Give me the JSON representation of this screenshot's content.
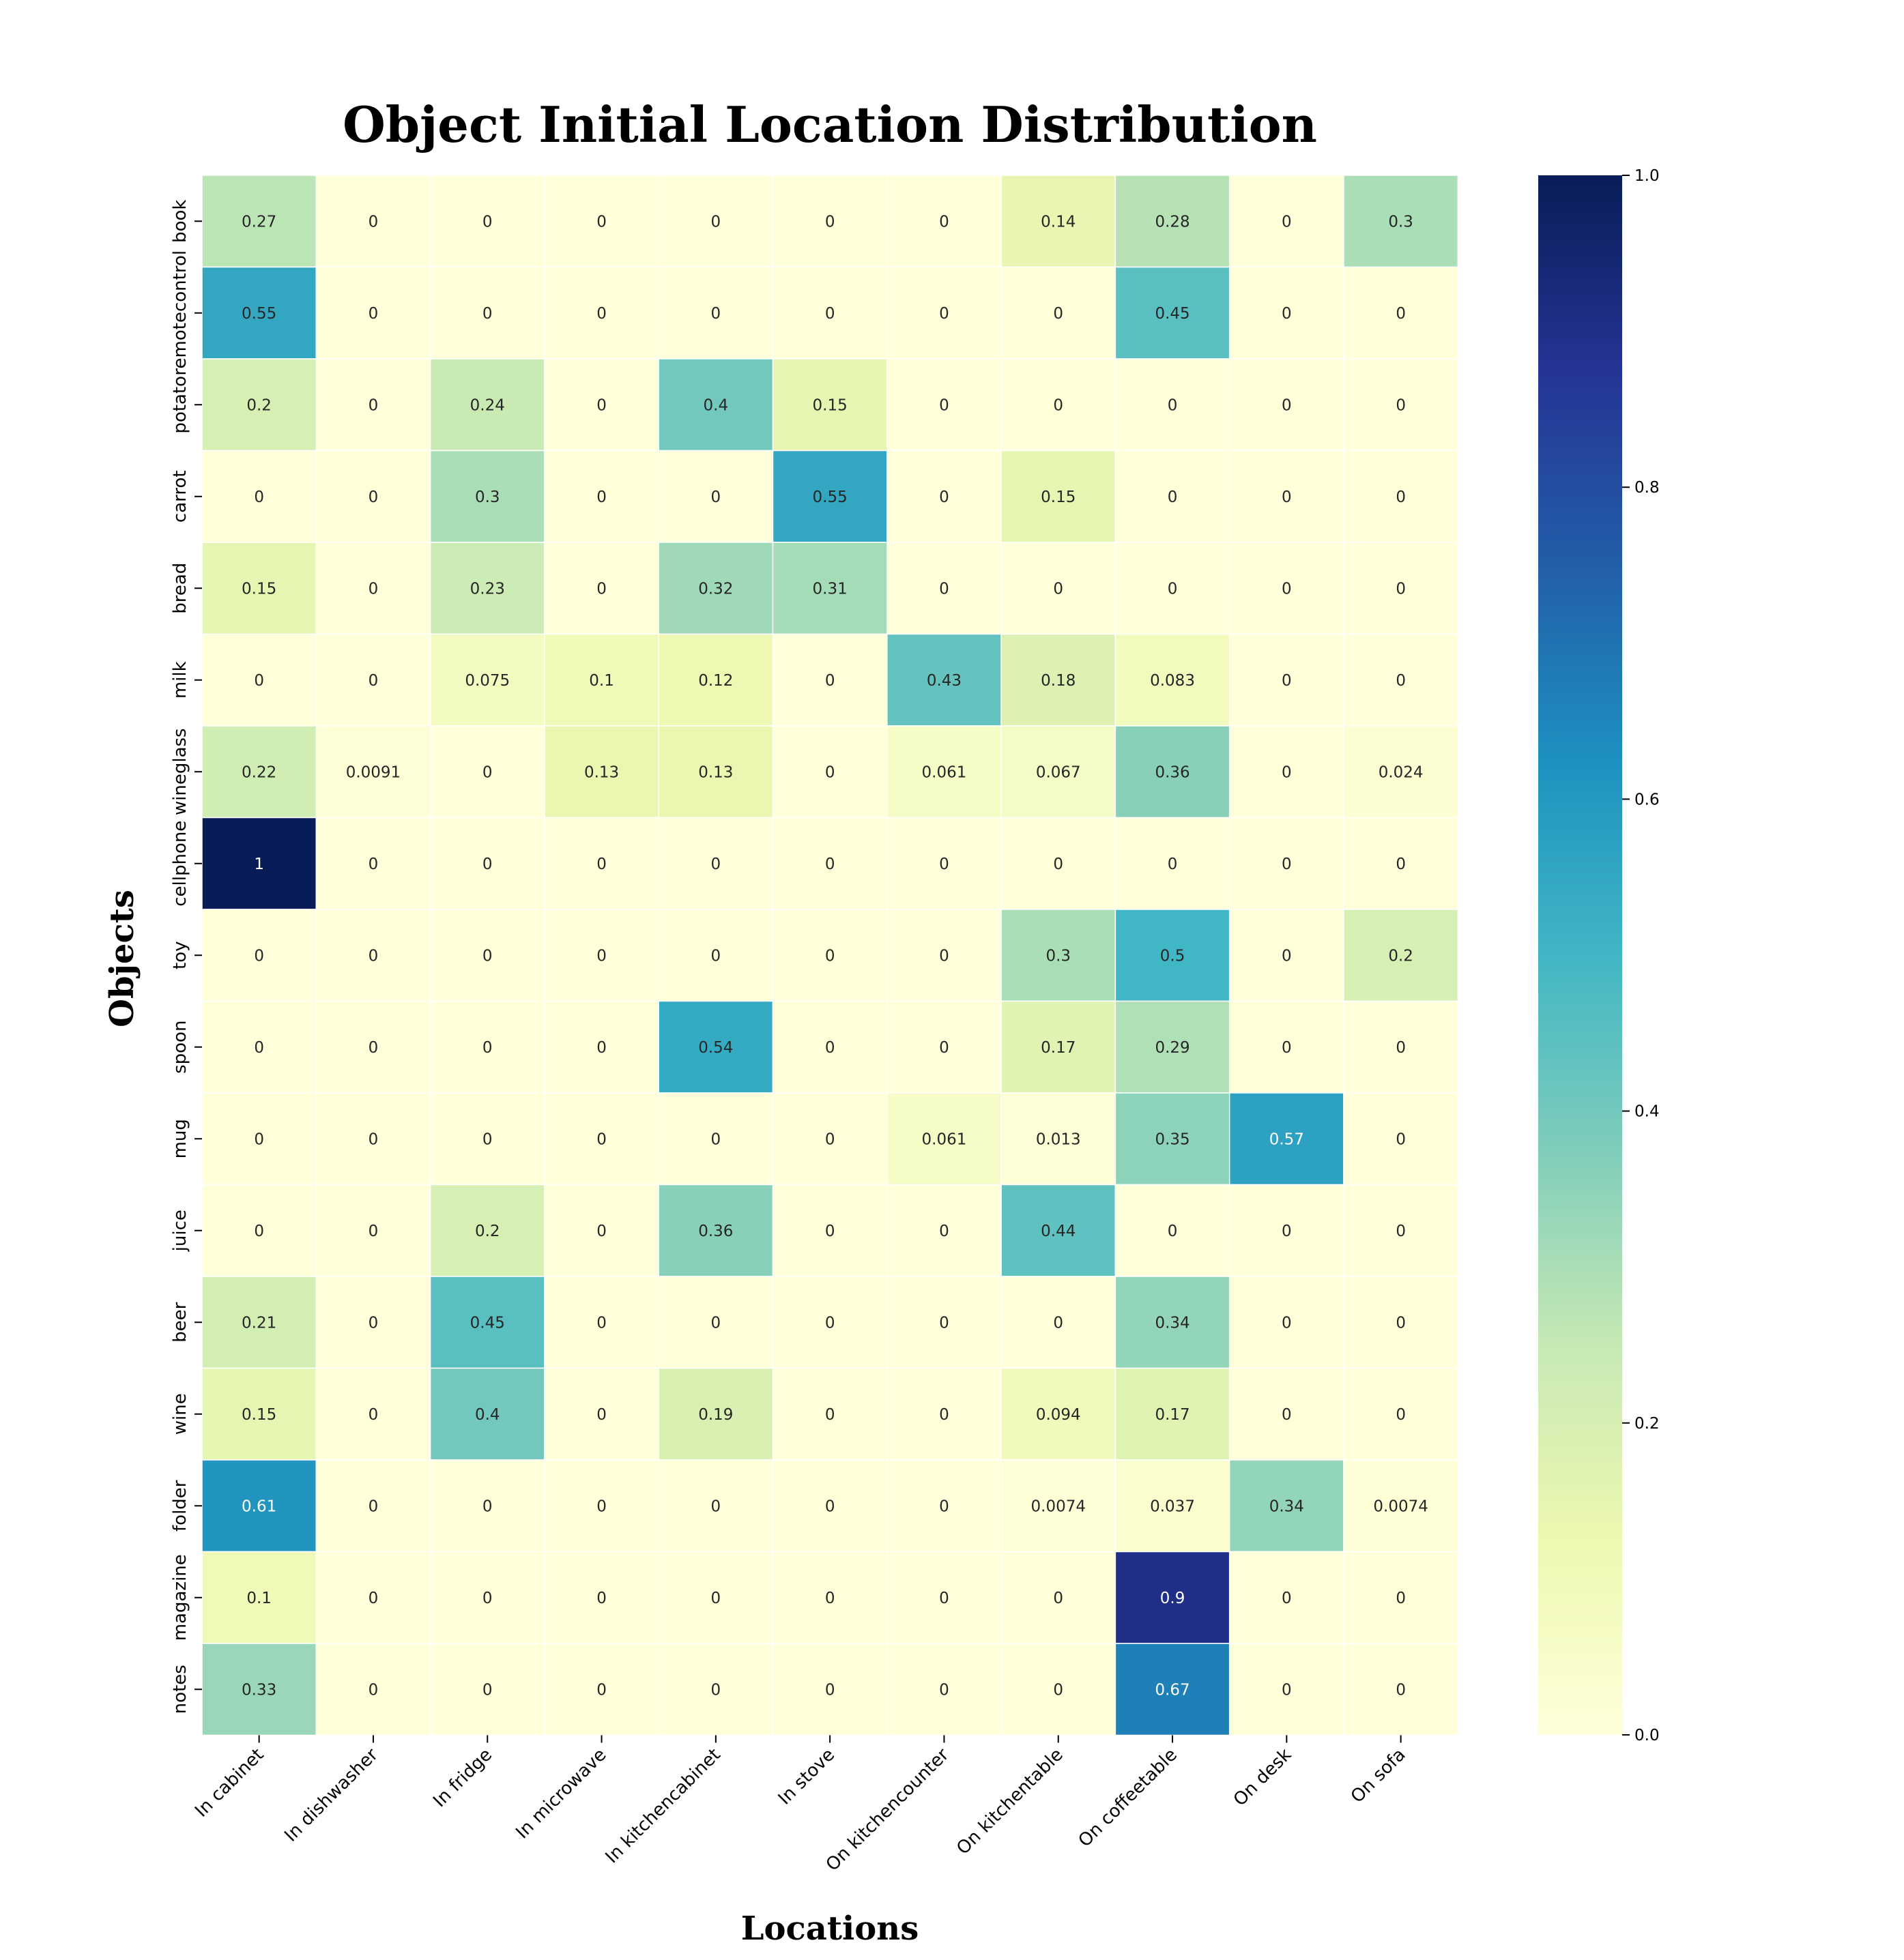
{
  "chart_data": {
    "type": "heatmap",
    "title": "Object Initial Location Distribution",
    "xlabel": "Locations",
    "ylabel": "Objects",
    "colormap": "YlGnBu",
    "colorbar": {
      "min": 0.0,
      "max": 1.0,
      "ticks": [
        "0.0",
        "0.2",
        "0.4",
        "0.6",
        "0.8",
        "1.0"
      ]
    },
    "x_categories": [
      "In cabinet",
      "In dishwasher",
      "In fridge",
      "In microwave",
      "In kitchencabinet",
      "In stove",
      "On kitchencounter",
      "On kitchentable",
      "On coffeetable",
      "On desk",
      "On sofa"
    ],
    "y_categories": [
      "book",
      "remotecontrol",
      "potato",
      "carrot",
      "bread",
      "milk",
      "wineglass",
      "cellphone",
      "toy",
      "spoon",
      "mug",
      "juice",
      "beer",
      "wine",
      "folder",
      "magazine",
      "notes"
    ],
    "values": [
      [
        0.27,
        0,
        0,
        0,
        0,
        0,
        0,
        0.14,
        0.28,
        0,
        0.3
      ],
      [
        0.55,
        0,
        0,
        0,
        0,
        0,
        0,
        0,
        0.45,
        0,
        0
      ],
      [
        0.2,
        0,
        0.24,
        0,
        0.4,
        0.15,
        0,
        0,
        0,
        0,
        0
      ],
      [
        0,
        0,
        0.3,
        0,
        0,
        0.55,
        0,
        0.15,
        0,
        0,
        0
      ],
      [
        0.15,
        0,
        0.23,
        0,
        0.32,
        0.31,
        0,
        0,
        0,
        0,
        0
      ],
      [
        0,
        0,
        0.075,
        0.1,
        0.12,
        0,
        0.43,
        0.18,
        0.083,
        0,
        0
      ],
      [
        0.22,
        0.0091,
        0,
        0.13,
        0.13,
        0,
        0.061,
        0.067,
        0.36,
        0,
        0.024
      ],
      [
        1,
        0,
        0,
        0,
        0,
        0,
        0,
        0,
        0,
        0,
        0
      ],
      [
        0,
        0,
        0,
        0,
        0,
        0,
        0,
        0.3,
        0.5,
        0,
        0.2
      ],
      [
        0,
        0,
        0,
        0,
        0.54,
        0,
        0,
        0.17,
        0.29,
        0,
        0
      ],
      [
        0,
        0,
        0,
        0,
        0,
        0,
        0.061,
        0.013,
        0.35,
        0.57,
        0
      ],
      [
        0,
        0,
        0.2,
        0,
        0.36,
        0,
        0,
        0.44,
        0,
        0,
        0
      ],
      [
        0.21,
        0,
        0.45,
        0,
        0,
        0,
        0,
        0,
        0.34,
        0,
        0
      ],
      [
        0.15,
        0,
        0.4,
        0,
        0.19,
        0,
        0,
        0.094,
        0.17,
        0,
        0
      ],
      [
        0.61,
        0,
        0,
        0,
        0,
        0,
        0,
        0.0074,
        0.037,
        0.34,
        0.0074
      ],
      [
        0.1,
        0,
        0,
        0,
        0,
        0,
        0,
        0,
        0.9,
        0,
        0
      ],
      [
        0.33,
        0,
        0,
        0,
        0,
        0,
        0,
        0,
        0.67,
        0,
        0
      ]
    ],
    "annotations": [
      [
        "0.27",
        "0",
        "0",
        "0",
        "0",
        "0",
        "0",
        "0.14",
        "0.28",
        "0",
        "0.3"
      ],
      [
        "0.55",
        "0",
        "0",
        "0",
        "0",
        "0",
        "0",
        "0",
        "0.45",
        "0",
        "0"
      ],
      [
        "0.2",
        "0",
        "0.24",
        "0",
        "0.4",
        "0.15",
        "0",
        "0",
        "0",
        "0",
        "0"
      ],
      [
        "0",
        "0",
        "0.3",
        "0",
        "0",
        "0.55",
        "0",
        "0.15",
        "0",
        "0",
        "0"
      ],
      [
        "0.15",
        "0",
        "0.23",
        "0",
        "0.32",
        "0.31",
        "0",
        "0",
        "0",
        "0",
        "0"
      ],
      [
        "0",
        "0",
        "0.075",
        "0.1",
        "0.12",
        "0",
        "0.43",
        "0.18",
        "0.083",
        "0",
        "0"
      ],
      [
        "0.22",
        "0.0091",
        "0",
        "0.13",
        "0.13",
        "0",
        "0.061",
        "0.067",
        "0.36",
        "0",
        "0.024"
      ],
      [
        "1",
        "0",
        "0",
        "0",
        "0",
        "0",
        "0",
        "0",
        "0",
        "0",
        "0"
      ],
      [
        "0",
        "0",
        "0",
        "0",
        "0",
        "0",
        "0",
        "0.3",
        "0.5",
        "0",
        "0.2"
      ],
      [
        "0",
        "0",
        "0",
        "0",
        "0.54",
        "0",
        "0",
        "0.17",
        "0.29",
        "0",
        "0"
      ],
      [
        "0",
        "0",
        "0",
        "0",
        "0",
        "0",
        "0.061",
        "0.013",
        "0.35",
        "0.57",
        "0"
      ],
      [
        "0",
        "0",
        "0.2",
        "0",
        "0.36",
        "0",
        "0",
        "0.44",
        "0",
        "0",
        "0"
      ],
      [
        "0.21",
        "0",
        "0.45",
        "0",
        "0",
        "0",
        "0",
        "0",
        "0.34",
        "0",
        "0"
      ],
      [
        "0.15",
        "0",
        "0.4",
        "0",
        "0.19",
        "0",
        "0",
        "0.094",
        "0.17",
        "0",
        "0"
      ],
      [
        "0.61",
        "0",
        "0",
        "0",
        "0",
        "0",
        "0",
        "0.0074",
        "0.037",
        "0.34",
        "0.0074"
      ],
      [
        "0.1",
        "0",
        "0",
        "0",
        "0",
        "0",
        "0",
        "0",
        "0.9",
        "0",
        "0"
      ],
      [
        "0.33",
        "0",
        "0",
        "0",
        "0",
        "0",
        "0",
        "0",
        "0.67",
        "0",
        "0"
      ]
    ],
    "grid": false,
    "legend": "colorbar-right"
  },
  "colors": {
    "colormap_stops": [
      "#ffffd9",
      "#edf8b1",
      "#c7e9b4",
      "#7fcdbb",
      "#41b6c4",
      "#1d91c0",
      "#225ea8",
      "#253494",
      "#081d58"
    ]
  }
}
